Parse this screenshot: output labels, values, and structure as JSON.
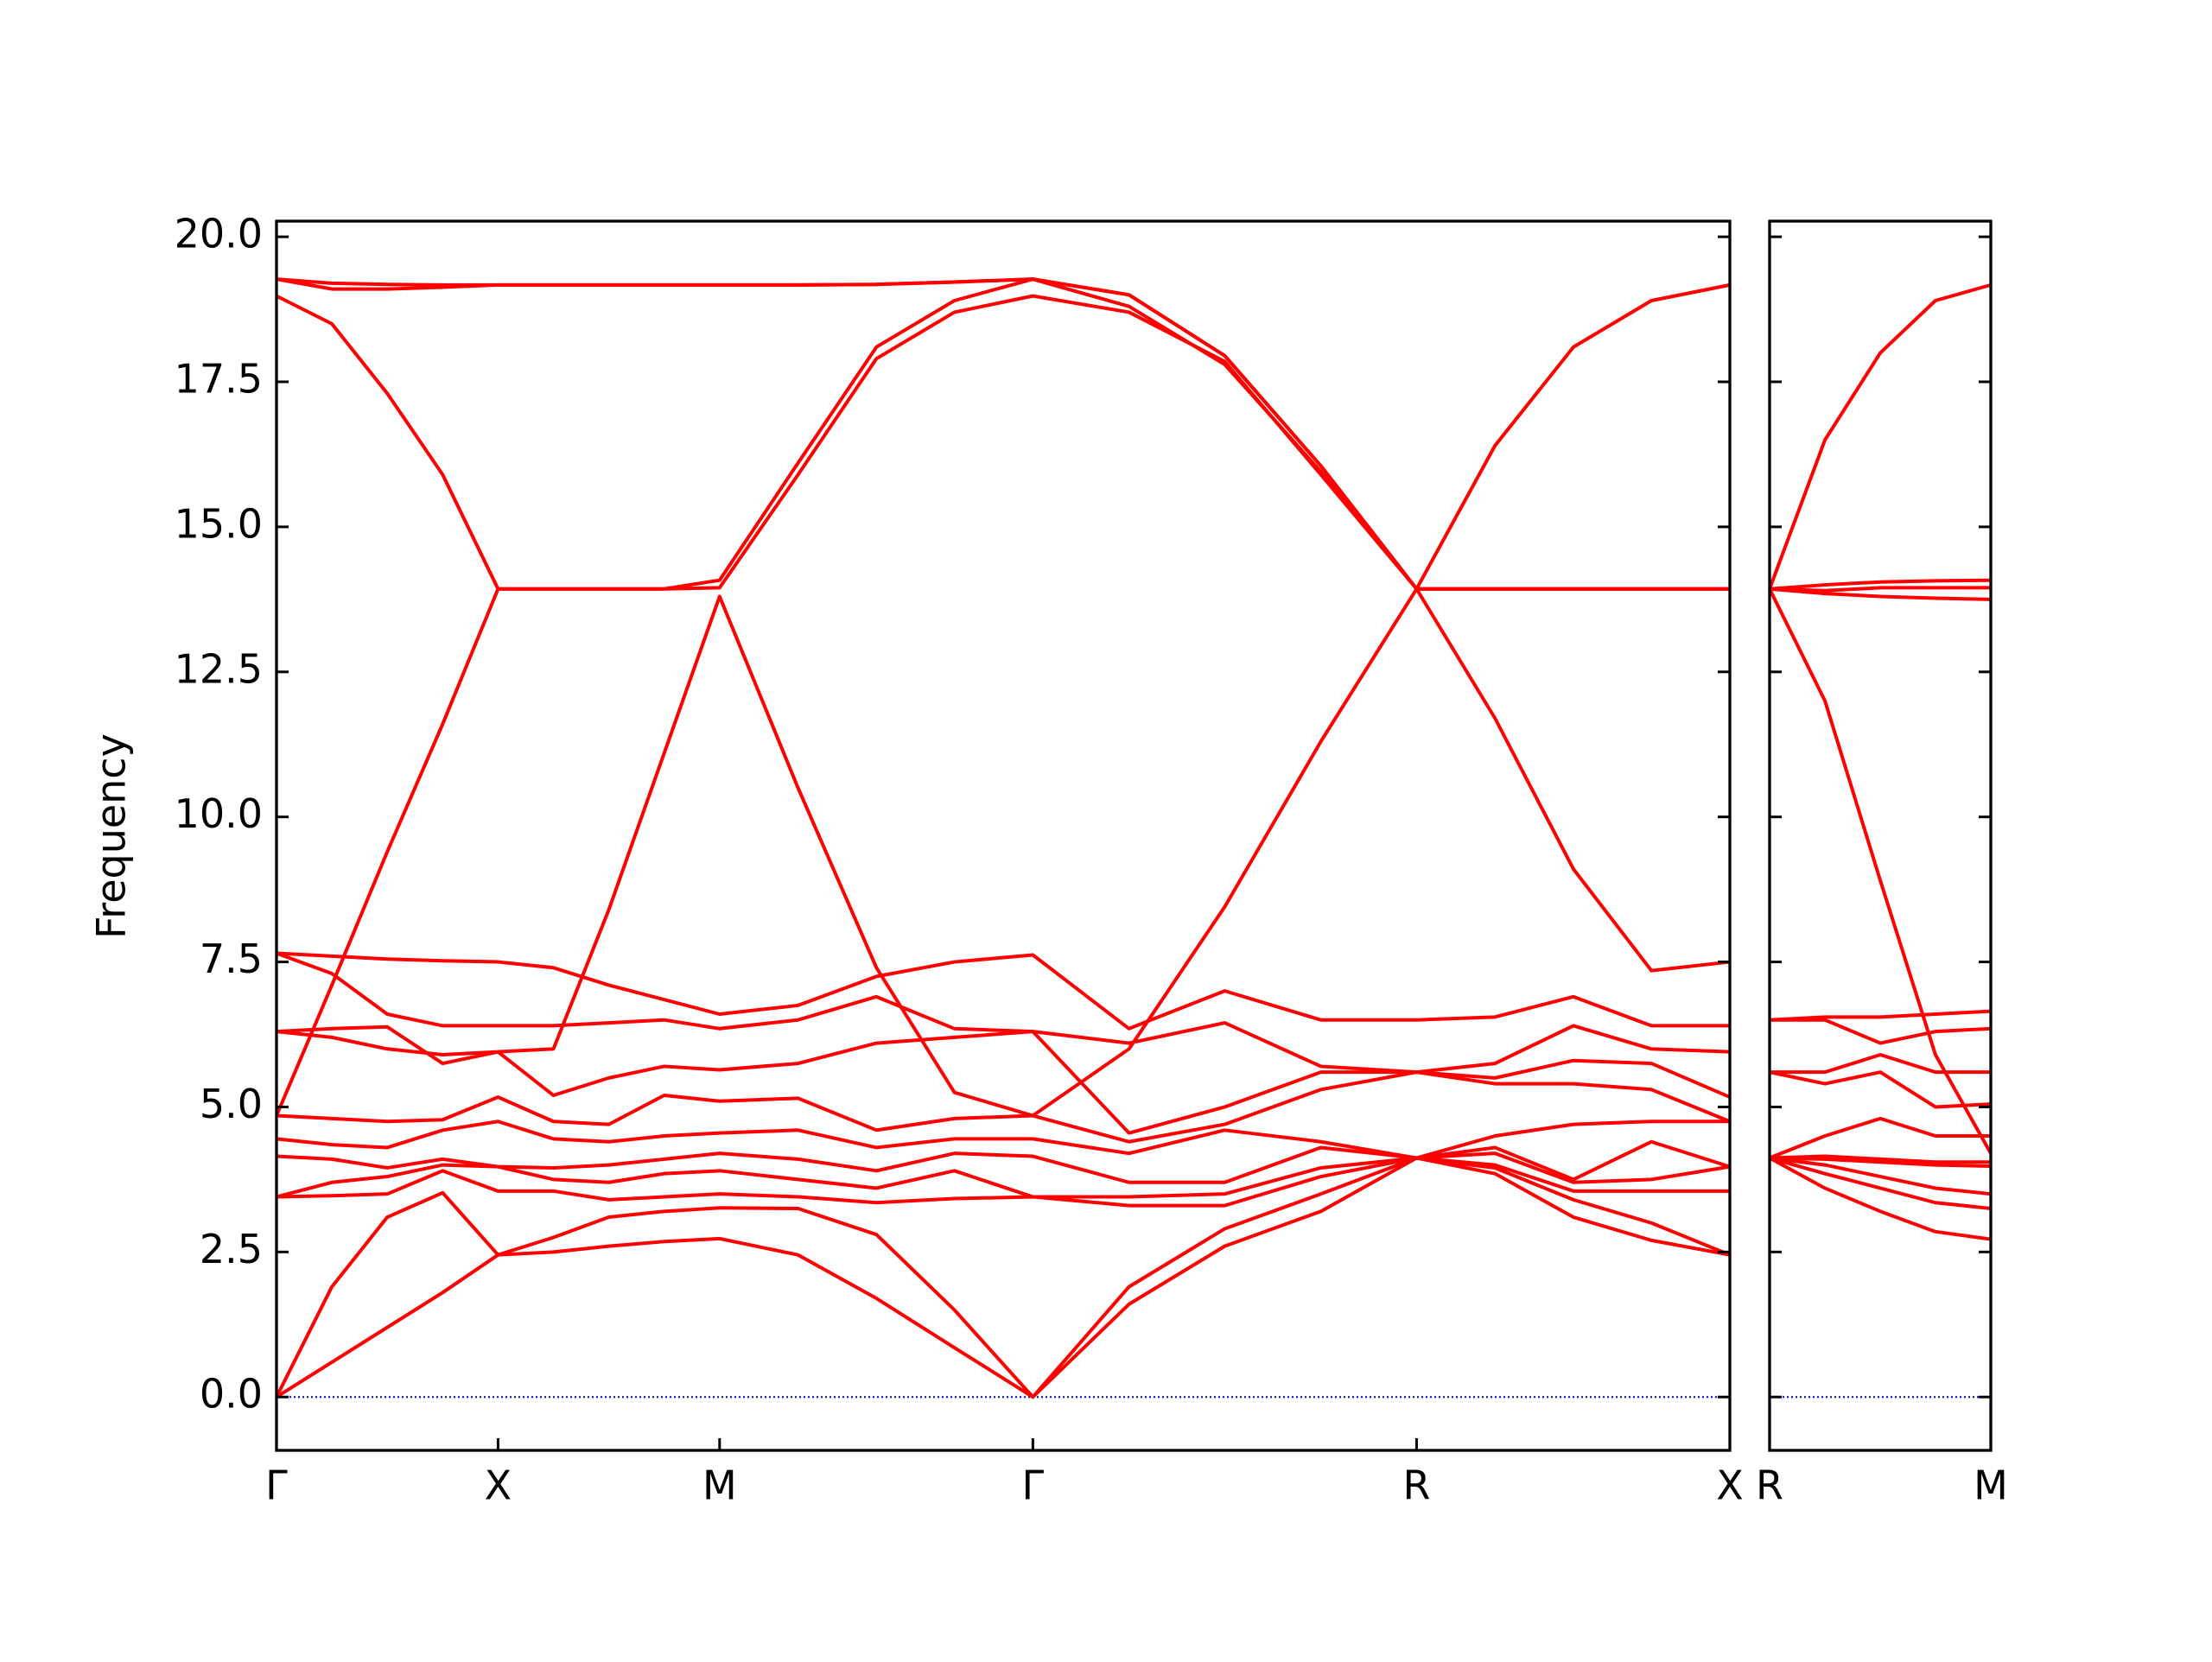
{
  "chart_data": [
    {
      "type": "line",
      "ylabel": "Frequency",
      "x": [
        0,
        0.125,
        0.25,
        0.375,
        0.5,
        0.625,
        0.75,
        0.875,
        1.0,
        1.177,
        1.354,
        1.53,
        1.707,
        1.924,
        2.14,
        2.357,
        2.573,
        2.75,
        2.927,
        3.103,
        3.28
      ],
      "xlim": [
        0,
        3.28
      ],
      "xticks": [
        {
          "value": 0,
          "label": "Γ"
        },
        {
          "value": 0.5,
          "label": "X"
        },
        {
          "value": 1.0,
          "label": "M"
        },
        {
          "value": 1.707,
          "label": "Γ"
        },
        {
          "value": 2.573,
          "label": "R"
        },
        {
          "value": 3.28,
          "label": "X"
        }
      ],
      "ylim": [
        -0.92,
        20.27
      ],
      "yticks": [
        {
          "value": 0,
          "label": "0.0"
        },
        2.5,
        {
          "value": 5,
          "label": "5.0"
        },
        7.5,
        {
          "value": 10,
          "label": "10.0"
        },
        12.5,
        {
          "value": 15,
          "label": "15.0"
        },
        17.5,
        {
          "value": 20,
          "label": "20.0"
        }
      ],
      "show_ytick_labels": true,
      "hline": {
        "y": 0,
        "color": "#0000cc"
      },
      "series": [
        {
          "color": "#ff0000",
          "values": [
            0,
            0.6,
            1.2,
            1.8,
            2.45,
            2.5,
            2.6,
            2.68,
            2.73,
            2.45,
            1.7,
            0.85,
            0,
            1.6,
            2.6,
            3.2,
            4.12,
            3.85,
            3.1,
            2.7,
            2.45
          ]
        },
        {
          "color": "#ff0000",
          "values": [
            0,
            1.9,
            3.1,
            3.52,
            2.45,
            2.75,
            3.1,
            3.2,
            3.26,
            3.25,
            2.8,
            1.5,
            0,
            1.9,
            2.9,
            3.5,
            4.12,
            3.95,
            3.4,
            3.0,
            2.45
          ]
        },
        {
          "color": "#ff0000",
          "values": [
            3.45,
            3.47,
            3.5,
            3.9,
            3.55,
            3.55,
            3.4,
            3.45,
            3.5,
            3.45,
            3.35,
            3.42,
            3.45,
            3.3,
            3.3,
            3.8,
            4.12,
            4.0,
            3.55,
            3.55,
            3.55
          ]
        },
        {
          "color": "#ff0000",
          "values": [
            3.45,
            3.7,
            3.8,
            4.0,
            3.97,
            3.75,
            3.7,
            3.85,
            3.9,
            3.75,
            3.6,
            3.9,
            3.45,
            3.45,
            3.5,
            3.95,
            4.12,
            4.2,
            3.7,
            3.75,
            3.97
          ]
        },
        {
          "color": "#ff0000",
          "values": [
            4.15,
            4.1,
            3.95,
            4.1,
            3.97,
            3.95,
            4.0,
            4.1,
            4.2,
            4.1,
            3.9,
            4.2,
            4.15,
            3.7,
            3.7,
            4.3,
            4.12,
            4.3,
            3.75,
            4.4,
            3.97
          ]
        },
        {
          "color": "#ff0000",
          "values": [
            4.45,
            4.35,
            4.3,
            4.6,
            4.75,
            4.45,
            4.4,
            4.5,
            4.55,
            4.6,
            4.3,
            4.45,
            4.45,
            4.2,
            4.6,
            4.4,
            4.12,
            4.5,
            4.7,
            4.75,
            4.75
          ]
        },
        {
          "color": "#ff0000",
          "values": [
            4.85,
            4.8,
            4.75,
            4.78,
            5.17,
            4.75,
            4.7,
            5.2,
            5.1,
            5.15,
            4.6,
            4.8,
            4.85,
            4.4,
            4.7,
            5.3,
            5.6,
            5.4,
            5.4,
            5.3,
            4.75
          ]
        },
        {
          "color": "#ff0000",
          "values": [
            6.3,
            6.35,
            6.38,
            5.75,
            5.95,
            5.2,
            5.5,
            5.7,
            5.64,
            5.75,
            6.1,
            6.2,
            6.3,
            4.55,
            5.0,
            5.6,
            5.6,
            5.5,
            5.8,
            5.75,
            5.17
          ]
        },
        {
          "color": "#ff0000",
          "values": [
            7.65,
            7.3,
            6.6,
            6.4,
            6.4,
            6.4,
            6.45,
            6.5,
            6.35,
            6.5,
            6.9,
            6.35,
            6.3,
            6.1,
            6.45,
            5.7,
            5.6,
            5.75,
            6.4,
            6.0,
            5.95
          ]
        },
        {
          "color": "#ff0000",
          "values": [
            7.65,
            7.6,
            7.55,
            7.52,
            7.5,
            7.4,
            7.1,
            6.85,
            6.6,
            6.75,
            7.25,
            7.5,
            7.62,
            6.35,
            7.0,
            6.5,
            6.5,
            6.55,
            6.9,
            6.4,
            6.4
          ]
        },
        {
          "color": "#ff0000",
          "values": [
            6.3,
            6.2,
            6.0,
            5.9,
            5.95,
            6.0,
            8.4,
            11.1,
            13.8,
            10.5,
            7.4,
            5.25,
            4.85,
            6.0,
            8.45,
            11.3,
            13.93,
            13.93,
            13.93,
            13.93,
            13.93
          ]
        },
        {
          "color": "#ff0000",
          "values": [
            4.85,
            7.1,
            9.4,
            11.6,
            13.93,
            13.93,
            13.93,
            13.93,
            13.95,
            15.9,
            17.9,
            18.7,
            18.98,
            18.7,
            17.85,
            15.9,
            13.93,
            13.93,
            13.93,
            13.93,
            13.93
          ]
        },
        {
          "color": "#ff0000",
          "values": [
            18.98,
            18.5,
            17.3,
            15.9,
            13.93,
            13.93,
            13.93,
            13.93,
            14.08,
            16.1,
            18.1,
            18.9,
            19.27,
            19.0,
            17.95,
            16.05,
            13.93,
            11.7,
            9.1,
            7.35,
            7.5
          ]
        },
        {
          "color": "#ff0000",
          "values": [
            19.27,
            19.1,
            19.1,
            19.13,
            19.17,
            19.17,
            19.17,
            19.17,
            19.17,
            19.17,
            19.18,
            19.22,
            19.27,
            18.8,
            17.8,
            15.95,
            13.93,
            13.93,
            13.93,
            13.93,
            13.93
          ]
        },
        {
          "color": "#ff0000",
          "values": [
            19.27,
            19.2,
            19.18,
            19.17,
            19.17,
            19.17,
            19.17,
            19.17,
            19.17,
            19.17,
            19.18,
            19.22,
            19.27,
            19.0,
            17.95,
            16.05,
            13.93,
            16.4,
            18.1,
            18.9,
            19.17
          ]
        }
      ]
    },
    {
      "type": "line",
      "x": [
        0,
        0.177,
        0.354,
        0.53,
        0.707
      ],
      "xlim": [
        0,
        0.707
      ],
      "xticks": [
        {
          "value": 0,
          "label": "R"
        },
        {
          "value": 0.707,
          "label": "M"
        }
      ],
      "ylim": [
        -0.92,
        20.27
      ],
      "yticks": [
        0,
        2.5,
        5,
        7.5,
        10,
        12.5,
        15,
        17.5,
        20
      ],
      "show_ytick_labels": false,
      "hline": {
        "y": 0,
        "color": "#0000cc"
      },
      "series": [
        {
          "color": "#ff0000",
          "values": [
            4.12,
            3.6,
            3.2,
            2.85,
            2.72
          ]
        },
        {
          "color": "#ff0000",
          "values": [
            4.12,
            3.85,
            3.6,
            3.35,
            3.25
          ]
        },
        {
          "color": "#ff0000",
          "values": [
            4.12,
            4.0,
            3.8,
            3.6,
            3.5
          ]
        },
        {
          "color": "#ff0000",
          "values": [
            4.12,
            4.1,
            4.05,
            4.0,
            3.98
          ]
        },
        {
          "color": "#ff0000",
          "values": [
            4.12,
            4.15,
            4.1,
            4.05,
            4.05
          ]
        },
        {
          "color": "#ff0000",
          "values": [
            4.12,
            4.5,
            4.8,
            4.5,
            4.5
          ]
        },
        {
          "color": "#ff0000",
          "values": [
            5.6,
            5.4,
            5.6,
            5.0,
            5.05
          ]
        },
        {
          "color": "#ff0000",
          "values": [
            5.6,
            5.6,
            5.9,
            5.6,
            5.6
          ]
        },
        {
          "color": "#ff0000",
          "values": [
            6.5,
            6.5,
            6.1,
            6.3,
            6.35
          ]
        },
        {
          "color": "#ff0000",
          "values": [
            6.5,
            6.55,
            6.55,
            6.6,
            6.65
          ]
        },
        {
          "color": "#ff0000",
          "values": [
            13.93,
            12.0,
            8.9,
            5.9,
            4.2
          ]
        },
        {
          "color": "#ff0000",
          "values": [
            13.93,
            13.85,
            13.8,
            13.77,
            13.75
          ]
        },
        {
          "color": "#ff0000",
          "values": [
            13.93,
            13.9,
            13.95,
            13.95,
            13.95
          ]
        },
        {
          "color": "#ff0000",
          "values": [
            13.93,
            14.0,
            14.05,
            14.07,
            14.08
          ]
        },
        {
          "color": "#ff0000",
          "values": [
            13.93,
            16.5,
            18.0,
            18.9,
            19.17
          ]
        }
      ]
    }
  ]
}
